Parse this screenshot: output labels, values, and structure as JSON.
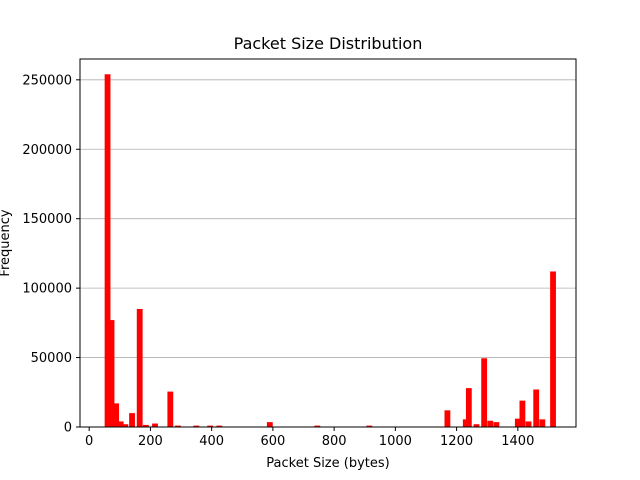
{
  "chart_data": {
    "type": "bar",
    "title": "Packet Size Distribution",
    "xlabel": "Packet Size (bytes)",
    "ylabel": "Frequency",
    "xlim": [
      -30,
      1590
    ],
    "ylim": [
      0,
      265000
    ],
    "xticks": [
      0,
      200,
      400,
      600,
      800,
      1000,
      1200,
      1400
    ],
    "yticks": [
      0,
      50000,
      100000,
      150000,
      200000,
      250000
    ],
    "bar_width": 19,
    "grid": "horizontal",
    "bar_color": "#ff0000",
    "bins": [
      {
        "x": 60,
        "value": 254000
      },
      {
        "x": 73,
        "value": 77000
      },
      {
        "x": 88,
        "value": 17000
      },
      {
        "x": 103,
        "value": 4000
      },
      {
        "x": 118,
        "value": 2000
      },
      {
        "x": 140,
        "value": 10000
      },
      {
        "x": 165,
        "value": 85000
      },
      {
        "x": 185,
        "value": 1500
      },
      {
        "x": 215,
        "value": 2500
      },
      {
        "x": 265,
        "value": 25500
      },
      {
        "x": 290,
        "value": 1000
      },
      {
        "x": 350,
        "value": 1000
      },
      {
        "x": 395,
        "value": 1000
      },
      {
        "x": 425,
        "value": 1000
      },
      {
        "x": 590,
        "value": 3500
      },
      {
        "x": 745,
        "value": 1000
      },
      {
        "x": 915,
        "value": 1000
      },
      {
        "x": 1170,
        "value": 12000
      },
      {
        "x": 1230,
        "value": 5500
      },
      {
        "x": 1240,
        "value": 28000
      },
      {
        "x": 1265,
        "value": 2000
      },
      {
        "x": 1290,
        "value": 49500
      },
      {
        "x": 1310,
        "value": 4500
      },
      {
        "x": 1330,
        "value": 3500
      },
      {
        "x": 1400,
        "value": 6000
      },
      {
        "x": 1415,
        "value": 19000
      },
      {
        "x": 1435,
        "value": 4000
      },
      {
        "x": 1460,
        "value": 27000
      },
      {
        "x": 1480,
        "value": 5500
      },
      {
        "x": 1515,
        "value": 112000
      }
    ]
  }
}
